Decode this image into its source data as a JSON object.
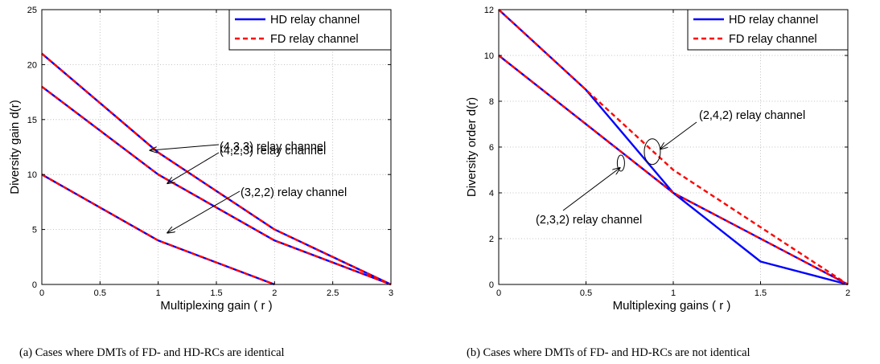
{
  "chart_data": [
    {
      "type": "line",
      "title": "",
      "xlabel": "Multiplexing gain ( r )",
      "ylabel": "Diversity gain d(r)",
      "xlim": [
        0,
        3
      ],
      "ylim": [
        0,
        25
      ],
      "xticks": [
        "0",
        "0.5",
        "1",
        "1.5",
        "2",
        "2.5",
        "3"
      ],
      "yticks": [
        "0",
        "5",
        "10",
        "15",
        "20",
        "25"
      ],
      "grid": true,
      "legend_position": "top-right",
      "legend": [
        {
          "label": "HD relay channel",
          "color": "#0000ff",
          "style": "solid"
        },
        {
          "label": "FD relay channel",
          "color": "#ff0000",
          "style": "dashed"
        }
      ],
      "series": [
        {
          "legend": "HD relay channel",
          "channel": "(4,3,3)",
          "x": [
            0,
            1,
            2,
            3
          ],
          "y": [
            21,
            12,
            5,
            0
          ]
        },
        {
          "legend": "FD relay channel",
          "channel": "(4,3,3)",
          "x": [
            0,
            1,
            2,
            3
          ],
          "y": [
            21,
            12,
            5,
            0
          ]
        },
        {
          "legend": "HD relay channel",
          "channel": "(4,2,3)",
          "x": [
            0,
            1,
            2,
            3
          ],
          "y": [
            18,
            10,
            4,
            0
          ]
        },
        {
          "legend": "FD relay channel",
          "channel": "(4,2,3)",
          "x": [
            0,
            1,
            2,
            3
          ],
          "y": [
            18,
            10,
            4,
            0
          ]
        },
        {
          "legend": "HD relay channel",
          "channel": "(3,2,2)",
          "x": [
            0,
            1,
            2
          ],
          "y": [
            10,
            4,
            0
          ]
        },
        {
          "legend": "FD relay channel",
          "channel": "(3,2,2)",
          "x": [
            0,
            1,
            2
          ],
          "y": [
            10,
            4,
            0
          ]
        }
      ],
      "annotations": [
        {
          "text": "(4,3,3) relay channel",
          "target": [
            0.93,
            12.2
          ]
        },
        {
          "text": "(4,2,3) relay channel",
          "target": [
            1.08,
            9.2
          ]
        },
        {
          "text": "(3,2,2) relay channel",
          "target": [
            1.08,
            4.7
          ]
        }
      ],
      "caption": "(a) Cases where DMTs of FD- and HD-RCs are identical"
    },
    {
      "type": "line",
      "title": "",
      "xlabel": "Multiplexing gains ( r )",
      "ylabel": "Diversity order d(r)",
      "xlim": [
        0,
        2
      ],
      "ylim": [
        0,
        12
      ],
      "xticks": [
        "0",
        "0.5",
        "1",
        "1.5",
        "2"
      ],
      "yticks": [
        "0",
        "2",
        "4",
        "6",
        "8",
        "10",
        "12"
      ],
      "grid": true,
      "legend_position": "top-right",
      "legend": [
        {
          "label": "HD relay channel",
          "color": "#0000ff",
          "style": "solid"
        },
        {
          "label": "FD relay channel",
          "color": "#ff0000",
          "style": "dashed"
        }
      ],
      "series": [
        {
          "legend": "HD relay channel",
          "channel": "(2,4,2)",
          "x": [
            0,
            0.5,
            1,
            1.5,
            2
          ],
          "y": [
            12,
            8.5,
            4,
            1,
            0
          ]
        },
        {
          "legend": "FD relay channel",
          "channel": "(2,4,2)",
          "x": [
            0,
            0.5,
            1,
            2
          ],
          "y": [
            12,
            8.5,
            5,
            0
          ]
        },
        {
          "legend": "HD relay channel",
          "channel": "(2,3,2)",
          "x": [
            0,
            1,
            2
          ],
          "y": [
            10,
            4,
            0
          ]
        },
        {
          "legend": "FD relay channel",
          "channel": "(2,3,2)",
          "x": [
            0,
            1,
            2
          ],
          "y": [
            10,
            4,
            0
          ]
        }
      ],
      "annotations": [
        {
          "text": "(2,4,2) relay channel",
          "target": [
            0.88,
            5.8
          ]
        },
        {
          "text": "(2,3,2) relay channel",
          "target": [
            0.7,
            5.3
          ]
        }
      ],
      "caption": "(b) Cases where DMTs of FD- and HD-RCs are not identical"
    }
  ]
}
